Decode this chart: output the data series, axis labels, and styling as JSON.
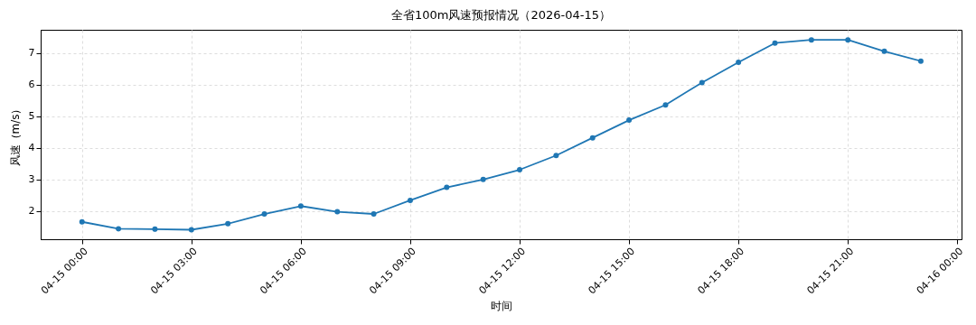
{
  "chart_data": {
    "type": "line",
    "title": "全省100m风速预报情况（2026-04-15）",
    "xlabel": "时间",
    "ylabel": "风速（m/s）",
    "x": [
      "2026-04-15T00:00",
      "2026-04-15T01:00",
      "2026-04-15T02:00",
      "2026-04-15T03:00",
      "2026-04-15T04:00",
      "2026-04-15T05:00",
      "2026-04-15T06:00",
      "2026-04-15T07:00",
      "2026-04-15T08:00",
      "2026-04-15T09:00",
      "2026-04-15T10:00",
      "2026-04-15T11:00",
      "2026-04-15T12:00",
      "2026-04-15T13:00",
      "2026-04-15T14:00",
      "2026-04-15T15:00",
      "2026-04-15T16:00",
      "2026-04-15T17:00",
      "2026-04-15T18:00",
      "2026-04-15T19:00",
      "2026-04-15T20:00",
      "2026-04-15T21:00",
      "2026-04-15T22:00",
      "2026-04-15T23:00"
    ],
    "series": [
      {
        "color": "#1f77b4",
        "values": [
          1.65,
          1.43,
          1.42,
          1.4,
          1.59,
          1.9,
          2.15,
          1.97,
          1.9,
          2.33,
          2.74,
          2.99,
          3.3,
          3.75,
          4.31,
          4.87,
          5.35,
          6.06,
          6.7,
          7.31,
          7.41,
          7.41,
          7.05,
          6.74
        ]
      }
    ],
    "xlim": [
      "2026-04-14T22:52",
      "2026-04-16T00:07"
    ],
    "ylim": [
      1.1,
      7.73
    ],
    "xticks": [
      {
        "value": "2026-04-15T00:00",
        "label": "04-15 00:00"
      },
      {
        "value": "2026-04-15T03:00",
        "label": "04-15 03:00"
      },
      {
        "value": "2026-04-15T06:00",
        "label": "04-15 06:00"
      },
      {
        "value": "2026-04-15T09:00",
        "label": "04-15 09:00"
      },
      {
        "value": "2026-04-15T12:00",
        "label": "04-15 12:00"
      },
      {
        "value": "2026-04-15T15:00",
        "label": "04-15 15:00"
      },
      {
        "value": "2026-04-15T18:00",
        "label": "04-15 18:00"
      },
      {
        "value": "2026-04-15T21:00",
        "label": "04-15 21:00"
      },
      {
        "value": "2026-04-16T00:00",
        "label": "04-16 00:00"
      }
    ],
    "yticks": [
      2,
      3,
      4,
      5,
      6,
      7
    ],
    "grid": true,
    "marker": "circle",
    "line_style": "solid"
  }
}
